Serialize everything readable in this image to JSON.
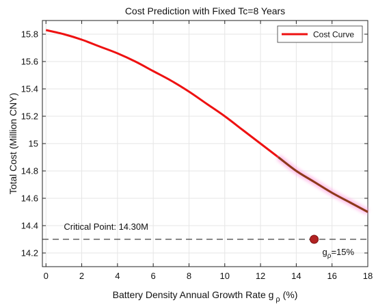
{
  "chart_data": {
    "type": "line",
    "title": "Cost Prediction with Fixed Tc=8 Years",
    "xlabel": "Battery Density Annual Growth Rate g",
    "xlabel_sub": "ρ",
    "xlabel_suffix": " (%)",
    "ylabel": "Total Cost (Million CNY)",
    "xlim": [
      -0.2,
      18
    ],
    "ylim": [
      14.1,
      15.9
    ],
    "xticks": [
      0,
      2,
      4,
      6,
      8,
      10,
      12,
      14,
      16,
      18
    ],
    "yticks": [
      14.2,
      14.4,
      14.6,
      14.8,
      15.0,
      15.2,
      15.4,
      15.6,
      15.8
    ],
    "ytick_labels": [
      "14.2",
      "14.4",
      "14.6",
      "14.8",
      "15",
      "15.2",
      "15.4",
      "15.6",
      "15.8"
    ],
    "grid": true,
    "legend_position": "top-right",
    "series": [
      {
        "name": "Cost Curve",
        "color": "#ee1111",
        "x": [
          0,
          1,
          2,
          3,
          4,
          5,
          6,
          7,
          8,
          9,
          10,
          11,
          12,
          13,
          14,
          15,
          16,
          17,
          18
        ],
        "y": [
          15.83,
          15.8,
          15.76,
          15.71,
          15.66,
          15.6,
          15.53,
          15.46,
          15.38,
          15.29,
          15.2,
          15.1,
          15.0,
          14.9,
          14.8,
          14.72,
          14.64,
          14.57,
          14.5
        ]
      }
    ],
    "highlight_segment": {
      "x_from": 13,
      "x_to": 18,
      "color": "#8b3a1a",
      "glow_color": "#ff99dd"
    },
    "reference_line": {
      "y": 14.3,
      "style": "dashed",
      "color": "#111111",
      "label": "Critical Point: 14.30M"
    },
    "marker": {
      "x": 15,
      "y": 14.3,
      "color": "#b22222",
      "label": "g",
      "label_sub": "ρ",
      "label_suffix": "=15%"
    }
  }
}
